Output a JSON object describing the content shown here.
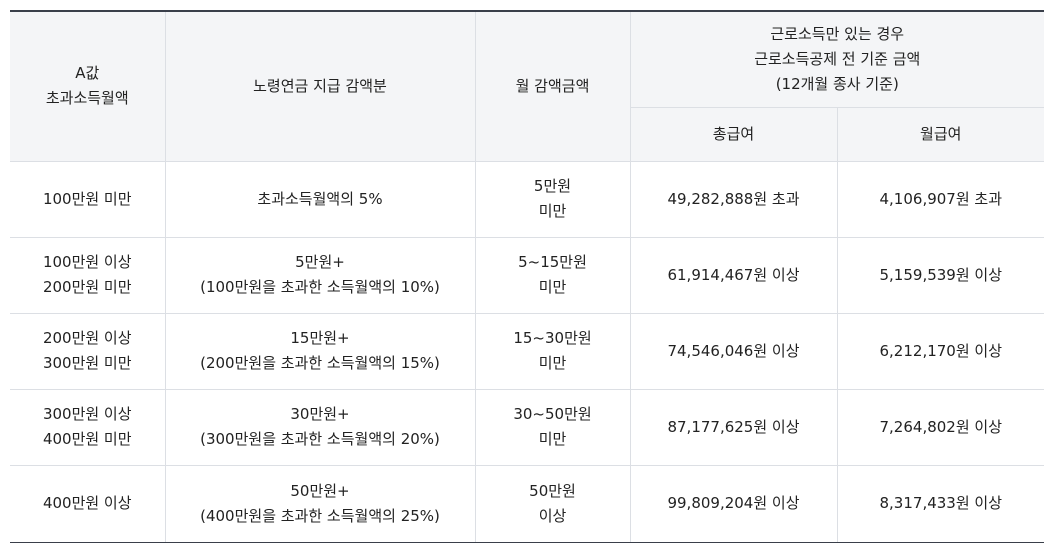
{
  "header": {
    "col1": [
      "A값",
      "초과소득월액"
    ],
    "col2": "노령연금 지급 감액분",
    "col3": "월 감액금액",
    "col4": [
      "근로소득만 있는 경우",
      "근로소득공제 전 기준 금액",
      "(12개월 종사 기준)"
    ],
    "col4_sub1": "총급여",
    "col4_sub2": "월급여"
  },
  "rows": [
    {
      "range": [
        "100만원 미만"
      ],
      "reduction": [
        "초과소득월액의 5%"
      ],
      "monthly": [
        "5만원",
        "미만"
      ],
      "total": "49,282,888원 초과",
      "month": "4,106,907원 초과"
    },
    {
      "range": [
        "100만원 이상",
        "200만원 미만"
      ],
      "reduction": [
        "5만원+",
        "(100만원을 초과한 소득월액의 10%)"
      ],
      "monthly": [
        "5~15만원",
        "미만"
      ],
      "total": "61,914,467원 이상",
      "month": "5,159,539원 이상"
    },
    {
      "range": [
        "200만원 이상",
        "300만원 미만"
      ],
      "reduction": [
        "15만원+",
        "(200만원을 초과한 소득월액의 15%)"
      ],
      "monthly": [
        "15~30만원",
        "미만"
      ],
      "total": "74,546,046원 이상",
      "month": "6,212,170원 이상"
    },
    {
      "range": [
        "300만원 이상",
        "400만원 미만"
      ],
      "reduction": [
        "30만원+",
        "(300만원을 초과한 소득월액의 20%)"
      ],
      "monthly": [
        "30~50만원",
        "미만"
      ],
      "total": "87,177,625원 이상",
      "month": "7,264,802원 이상"
    },
    {
      "range": [
        "400만원 이상"
      ],
      "reduction": [
        "50만원+",
        "(400만원을 초과한 소득월액의 25%)"
      ],
      "monthly": [
        "50만원",
        "이상"
      ],
      "total": "99,809,204원 이상",
      "month": "8,317,433원 이상"
    }
  ]
}
